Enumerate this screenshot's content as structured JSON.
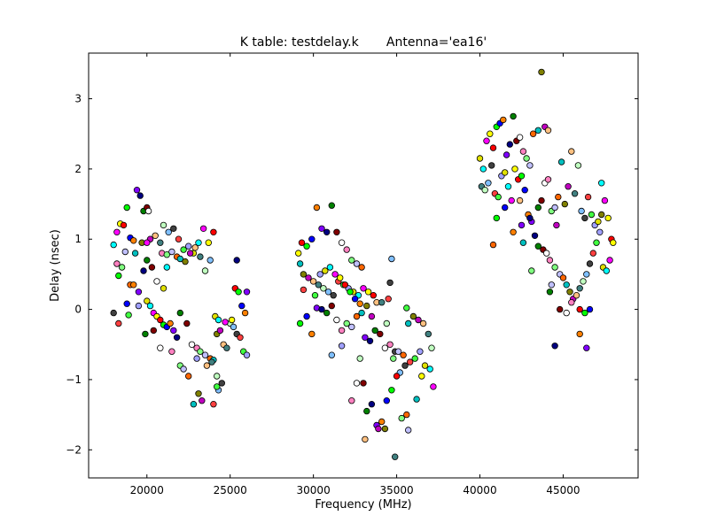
{
  "chart_data": {
    "type": "scatter",
    "title": "K table: testdelay.k       Antenna='ea16'",
    "xlabel": "Frequency (MHz)",
    "ylabel": "Delay (nsec)",
    "xlim": [
      16500,
      49500
    ],
    "ylim": [
      -2.4,
      3.65
    ],
    "xticks": [
      20000,
      25000,
      30000,
      35000,
      40000,
      45000
    ],
    "yticks": [
      -2,
      -1,
      0,
      1,
      2,
      3
    ],
    "xtick_labels": [
      "20000",
      "25000",
      "30000",
      "35000",
      "40000",
      "45000"
    ],
    "ytick_labels": [
      "−2",
      "−1",
      "0",
      "1",
      "2",
      "3"
    ],
    "grid": false,
    "legend": "none",
    "marker": "circle",
    "point_colors": [
      "#00ffff",
      "#ff00ff",
      "#ffff00",
      "#ff0000",
      "#00ff00",
      "#0000ff",
      "#ff8000",
      "#8000ff",
      "#000080",
      "#008000",
      "#800000",
      "#ffffff",
      "#ff80c0",
      "#80ff80",
      "#c0c0ff",
      "#ff6600",
      "#00c0c0",
      "#808000",
      "#c000c0",
      "#ffc080",
      "#408080",
      "#c0ffc0",
      "#80c0ff",
      "#404040",
      "#ff4040",
      "#40ff40",
      "#a0a0ff",
      "#e0e000"
    ],
    "points": [
      [
        18000,
        0.92
      ],
      [
        18200,
        1.1
      ],
      [
        18400,
        1.22
      ],
      [
        18600,
        1.2
      ],
      [
        18800,
        1.45
      ],
      [
        19000,
        1.02
      ],
      [
        19200,
        0.98
      ],
      [
        19400,
        1.7
      ],
      [
        19600,
        1.62
      ],
      [
        19800,
        1.4
      ],
      [
        20000,
        1.45
      ],
      [
        20100,
        1.4
      ],
      [
        18200,
        0.65
      ],
      [
        18500,
        0.6
      ],
      [
        18700,
        0.82
      ],
      [
        19000,
        0.35
      ],
      [
        19300,
        0.8
      ],
      [
        19700,
        0.95
      ],
      [
        20200,
        1.0
      ],
      [
        20500,
        1.05
      ],
      [
        20800,
        0.95
      ],
      [
        21000,
        1.2
      ],
      [
        21300,
        1.1
      ],
      [
        21600,
        1.15
      ],
      [
        21900,
        1.0
      ],
      [
        22200,
        0.85
      ],
      [
        22500,
        0.9
      ],
      [
        22800,
        0.8
      ],
      [
        23100,
        0.95
      ],
      [
        23400,
        1.15
      ],
      [
        23700,
        0.95
      ],
      [
        24000,
        1.1
      ],
      [
        18300,
        0.48
      ],
      [
        18800,
        0.08
      ],
      [
        19200,
        0.35
      ],
      [
        19500,
        0.25
      ],
      [
        19800,
        0.55
      ],
      [
        20000,
        0.7
      ],
      [
        20300,
        0.6
      ],
      [
        20600,
        0.4
      ],
      [
        20900,
        0.8
      ],
      [
        21200,
        0.78
      ],
      [
        21500,
        0.82
      ],
      [
        21800,
        0.75
      ],
      [
        22000,
        0.72
      ],
      [
        22300,
        0.68
      ],
      [
        22600,
        0.8
      ],
      [
        22900,
        0.88
      ],
      [
        23200,
        0.75
      ],
      [
        23500,
        0.55
      ],
      [
        23800,
        0.7
      ],
      [
        18000,
        -0.05
      ],
      [
        18300,
        -0.2
      ],
      [
        18900,
        -0.08
      ],
      [
        19500,
        0.05
      ],
      [
        20000,
        0.12
      ],
      [
        20200,
        0.05
      ],
      [
        20400,
        -0.05
      ],
      [
        20600,
        -0.1
      ],
      [
        20800,
        -0.15
      ],
      [
        21000,
        -0.22
      ],
      [
        21200,
        -0.25
      ],
      [
        21400,
        -0.2
      ],
      [
        21600,
        -0.3
      ],
      [
        21800,
        -0.4
      ],
      [
        22000,
        -0.05
      ],
      [
        22400,
        -0.2
      ],
      [
        22700,
        -0.5
      ],
      [
        23000,
        -0.55
      ],
      [
        23200,
        -0.6
      ],
      [
        23500,
        -0.65
      ],
      [
        23800,
        -0.7
      ],
      [
        24000,
        -0.72
      ],
      [
        24200,
        -0.35
      ],
      [
        24400,
        -0.3
      ],
      [
        24600,
        -0.5
      ],
      [
        24800,
        -0.55
      ],
      [
        25000,
        -0.2
      ],
      [
        25200,
        -0.25
      ],
      [
        25400,
        -0.35
      ],
      [
        25600,
        -0.4
      ],
      [
        25800,
        -0.6
      ],
      [
        26000,
        -0.65
      ],
      [
        24100,
        -0.1
      ],
      [
        24300,
        -0.15
      ],
      [
        24700,
        -0.18
      ],
      [
        25100,
        -0.15
      ],
      [
        25300,
        0.3
      ],
      [
        25500,
        0.25
      ],
      [
        25700,
        0.05
      ],
      [
        25900,
        -0.05
      ],
      [
        26000,
        0.25
      ],
      [
        25400,
        0.7
      ],
      [
        19900,
        -0.35
      ],
      [
        20400,
        -0.3
      ],
      [
        20800,
        -0.55
      ],
      [
        21500,
        -0.6
      ],
      [
        22000,
        -0.8
      ],
      [
        22200,
        -0.85
      ],
      [
        22500,
        -0.95
      ],
      [
        22800,
        -1.35
      ],
      [
        23100,
        -1.2
      ],
      [
        23300,
        -1.3
      ],
      [
        23600,
        -0.8
      ],
      [
        23900,
        -0.75
      ],
      [
        24200,
        -0.95
      ],
      [
        24300,
        -1.15
      ],
      [
        24500,
        -1.05
      ],
      [
        24000,
        -1.35
      ],
      [
        24200,
        -1.1
      ],
      [
        23000,
        -0.7
      ],
      [
        21000,
        0.3
      ],
      [
        21200,
        0.6
      ],
      [
        20000,
        0.95
      ],
      [
        29100,
        0.8
      ],
      [
        29300,
        0.95
      ],
      [
        29600,
        0.9
      ],
      [
        29900,
        1.0
      ],
      [
        30200,
        1.45
      ],
      [
        30500,
        1.15
      ],
      [
        30800,
        1.1
      ],
      [
        31100,
        1.48
      ],
      [
        31400,
        1.1
      ],
      [
        31700,
        0.95
      ],
      [
        32000,
        0.85
      ],
      [
        32300,
        0.7
      ],
      [
        32600,
        0.65
      ],
      [
        32900,
        0.6
      ],
      [
        29200,
        0.65
      ],
      [
        29400,
        0.5
      ],
      [
        29700,
        0.45
      ],
      [
        30000,
        0.4
      ],
      [
        30300,
        0.35
      ],
      [
        30600,
        0.3
      ],
      [
        30900,
        0.25
      ],
      [
        31200,
        0.2
      ],
      [
        31500,
        0.4
      ],
      [
        31800,
        0.35
      ],
      [
        32100,
        0.3
      ],
      [
        32400,
        0.25
      ],
      [
        32700,
        0.2
      ],
      [
        33000,
        0.3
      ],
      [
        33300,
        0.25
      ],
      [
        33600,
        0.2
      ],
      [
        29200,
        -0.2
      ],
      [
        29600,
        -0.1
      ],
      [
        29900,
        -0.35
      ],
      [
        30200,
        0.02
      ],
      [
        30500,
        0.0
      ],
      [
        30800,
        -0.05
      ],
      [
        31100,
        0.05
      ],
      [
        31400,
        -0.15
      ],
      [
        31700,
        -0.3
      ],
      [
        32000,
        -0.2
      ],
      [
        32300,
        -0.25
      ],
      [
        32600,
        -0.1
      ],
      [
        32900,
        -0.05
      ],
      [
        33200,
        0.05
      ],
      [
        33500,
        -0.1
      ],
      [
        33800,
        0.1
      ],
      [
        34100,
        0.1
      ],
      [
        34400,
        -0.2
      ],
      [
        34700,
        0.72
      ],
      [
        34900,
        -0.6
      ],
      [
        29400,
        0.28
      ],
      [
        30100,
        0.2
      ],
      [
        30400,
        0.5
      ],
      [
        30700,
        0.55
      ],
      [
        31000,
        0.6
      ],
      [
        31300,
        0.5
      ],
      [
        31600,
        0.45
      ],
      [
        31900,
        0.35
      ],
      [
        32200,
        0.25
      ],
      [
        32500,
        0.15
      ],
      [
        32800,
        0.08
      ],
      [
        33100,
        -0.4
      ],
      [
        33400,
        -0.45
      ],
      [
        33700,
        -0.3
      ],
      [
        34000,
        -0.35
      ],
      [
        34300,
        -0.55
      ],
      [
        34600,
        -0.5
      ],
      [
        34800,
        -0.7
      ],
      [
        35100,
        -0.6
      ],
      [
        35400,
        -0.65
      ],
      [
        35700,
        -0.2
      ],
      [
        36000,
        -0.1
      ],
      [
        36300,
        -0.15
      ],
      [
        36600,
        -0.2
      ],
      [
        36900,
        -0.35
      ],
      [
        37100,
        -0.55
      ],
      [
        35200,
        -0.9
      ],
      [
        35500,
        -0.8
      ],
      [
        35800,
        -0.75
      ],
      [
        36100,
        -0.7
      ],
      [
        36400,
        -0.6
      ],
      [
        36700,
        -0.8
      ],
      [
        37000,
        -0.85
      ],
      [
        37200,
        -1.1
      ],
      [
        36500,
        -0.95
      ],
      [
        35000,
        -0.95
      ],
      [
        34700,
        -1.15
      ],
      [
        34400,
        -1.3
      ],
      [
        34100,
        -1.6
      ],
      [
        33800,
        -1.65
      ],
      [
        33500,
        -1.35
      ],
      [
        33200,
        -1.45
      ],
      [
        33000,
        -1.05
      ],
      [
        32600,
        -1.05
      ],
      [
        32300,
        -1.3
      ],
      [
        35300,
        -1.55
      ],
      [
        35700,
        -1.72
      ],
      [
        35600,
        -1.5
      ],
      [
        36200,
        -1.28
      ],
      [
        34300,
        -1.7
      ],
      [
        33900,
        -1.7
      ],
      [
        33100,
        -1.85
      ],
      [
        34900,
        -2.1
      ],
      [
        32800,
        -0.7
      ],
      [
        31100,
        -0.65
      ],
      [
        34600,
        0.38
      ],
      [
        34500,
        0.15
      ],
      [
        35600,
        0.02
      ],
      [
        31700,
        -0.52
      ],
      [
        40000,
        2.15
      ],
      [
        40200,
        2.0
      ],
      [
        40400,
        2.4
      ],
      [
        40600,
        2.5
      ],
      [
        40800,
        2.3
      ],
      [
        41000,
        2.6
      ],
      [
        41200,
        2.65
      ],
      [
        41400,
        2.7
      ],
      [
        41600,
        2.2
      ],
      [
        41800,
        2.35
      ],
      [
        42000,
        2.75
      ],
      [
        42200,
        2.4
      ],
      [
        42400,
        2.45
      ],
      [
        42600,
        2.25
      ],
      [
        42800,
        2.15
      ],
      [
        43000,
        2.05
      ],
      [
        43200,
        2.5
      ],
      [
        43500,
        2.55
      ],
      [
        43700,
        3.38
      ],
      [
        43900,
        2.6
      ],
      [
        44100,
        2.55
      ],
      [
        40100,
        1.75
      ],
      [
        40300,
        1.7
      ],
      [
        40500,
        1.8
      ],
      [
        40700,
        2.05
      ],
      [
        40900,
        1.65
      ],
      [
        41100,
        1.6
      ],
      [
        41300,
        1.9
      ],
      [
        41500,
        1.95
      ],
      [
        41700,
        1.75
      ],
      [
        41900,
        1.55
      ],
      [
        42100,
        2.0
      ],
      [
        42300,
        1.85
      ],
      [
        42500,
        1.9
      ],
      [
        42700,
        1.7
      ],
      [
        42900,
        1.35
      ],
      [
        43100,
        1.25
      ],
      [
        43300,
        1.05
      ],
      [
        43500,
        1.45
      ],
      [
        43700,
        1.55
      ],
      [
        43900,
        1.8
      ],
      [
        44100,
        1.85
      ],
      [
        44300,
        1.4
      ],
      [
        44500,
        1.45
      ],
      [
        44700,
        1.6
      ],
      [
        44900,
        2.1
      ],
      [
        45100,
        1.5
      ],
      [
        45300,
        1.75
      ],
      [
        45500,
        2.25
      ],
      [
        45700,
        1.65
      ],
      [
        45900,
        2.05
      ],
      [
        46100,
        1.4
      ],
      [
        46300,
        1.3
      ],
      [
        46500,
        1.6
      ],
      [
        46700,
        1.35
      ],
      [
        46900,
        1.2
      ],
      [
        47100,
        1.25
      ],
      [
        47300,
        1.8
      ],
      [
        47500,
        1.55
      ],
      [
        47700,
        1.3
      ],
      [
        47900,
        1.0
      ],
      [
        41000,
        1.3
      ],
      [
        41500,
        1.45
      ],
      [
        42000,
        1.1
      ],
      [
        42500,
        1.2
      ],
      [
        43000,
        1.3
      ],
      [
        43500,
        0.9
      ],
      [
        43800,
        0.85
      ],
      [
        44000,
        0.8
      ],
      [
        44200,
        0.7
      ],
      [
        44500,
        0.6
      ],
      [
        44800,
        0.5
      ],
      [
        45000,
        0.45
      ],
      [
        45200,
        0.35
      ],
      [
        45400,
        0.25
      ],
      [
        45600,
        0.15
      ],
      [
        45800,
        0.2
      ],
      [
        46000,
        0.3
      ],
      [
        46200,
        0.4
      ],
      [
        46400,
        0.5
      ],
      [
        46600,
        0.65
      ],
      [
        46800,
        0.8
      ],
      [
        47000,
        0.95
      ],
      [
        47200,
        1.1
      ],
      [
        47400,
        0.6
      ],
      [
        47600,
        0.55
      ],
      [
        47800,
        0.7
      ],
      [
        48000,
        0.95
      ],
      [
        46000,
        0.0
      ],
      [
        46300,
        -0.05
      ],
      [
        46600,
        0.0
      ],
      [
        46000,
        -0.35
      ],
      [
        46400,
        -0.55
      ],
      [
        44500,
        -0.52
      ],
      [
        44200,
        0.25
      ],
      [
        44800,
        0.0
      ],
      [
        45200,
        -0.05
      ],
      [
        45500,
        0.1
      ],
      [
        43100,
        0.55
      ],
      [
        44300,
        0.35
      ],
      [
        40800,
        0.92
      ],
      [
        42600,
        0.95
      ],
      [
        47300,
        1.35
      ],
      [
        44600,
        1.2
      ],
      [
        42400,
        1.55
      ]
    ]
  }
}
